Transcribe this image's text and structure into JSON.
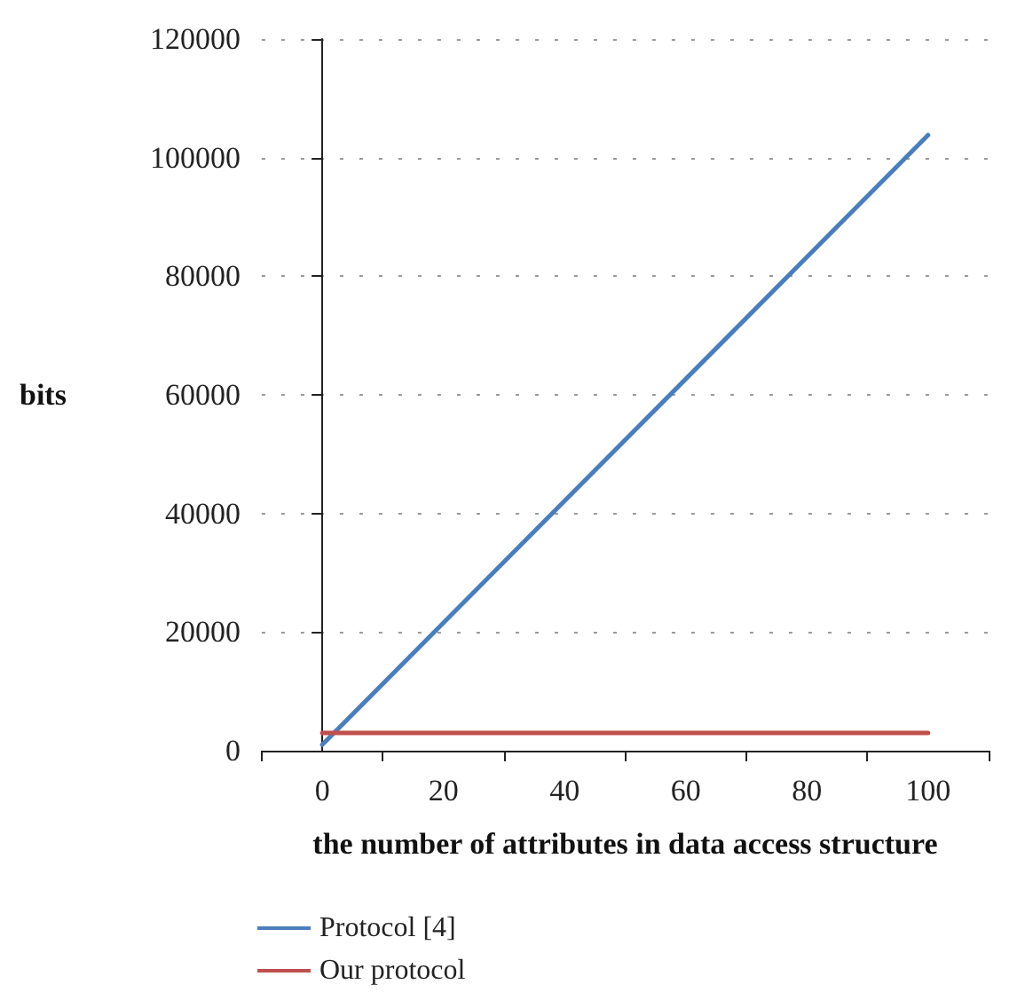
{
  "chart_data": {
    "type": "line",
    "xlabel": "the number of attributes in data access structure",
    "ylabel": "bits",
    "x": [
      0,
      100
    ],
    "series": [
      {
        "name": "Protocol [4]",
        "color": "#4a7ebb",
        "values": [
          1000,
          103800
        ]
      },
      {
        "name": "Our protocol",
        "color": "#c0504d",
        "values": [
          3000,
          3000
        ]
      }
    ],
    "xlim": [
      -10,
      110
    ],
    "xticks": [
      {
        "value": -10,
        "label": null
      },
      0,
      {
        "value": 10,
        "label": null
      },
      20,
      {
        "value": 30,
        "label": null
      },
      40,
      {
        "value": 50,
        "label": null
      },
      60,
      {
        "value": 70,
        "label": null
      },
      80,
      {
        "value": 90,
        "label": null
      },
      100,
      {
        "value": 110,
        "label": null
      }
    ],
    "ylim": [
      0,
      120000
    ],
    "yticks": [
      0,
      20000,
      40000,
      60000,
      80000,
      100000,
      120000
    ],
    "grid": "y",
    "legend": "bottom left",
    "marker": "none",
    "line_style": "solid"
  }
}
